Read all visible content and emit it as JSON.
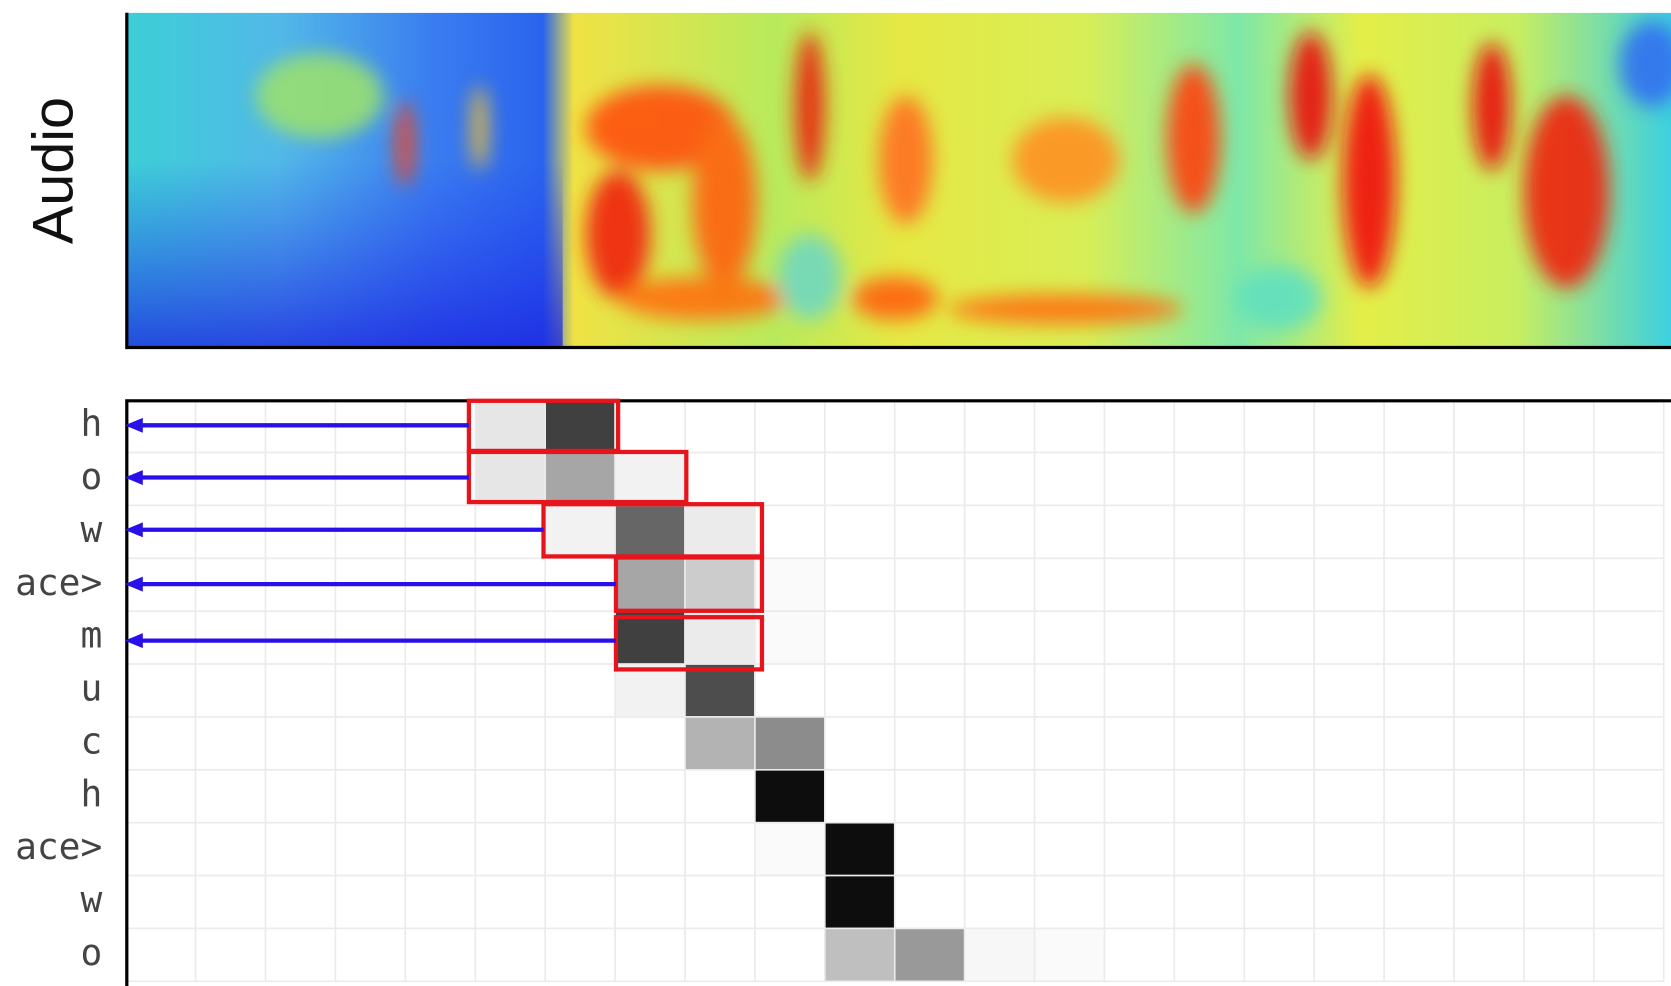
{
  "chart_data": {
    "type": "heatmap",
    "ylabel": "Audio",
    "rows": [
      "h",
      "o",
      "w",
      "ace>",
      "m",
      "u",
      "c",
      "h",
      "ace>",
      "w",
      "o"
    ],
    "color": "#000000",
    "clim": [
      0,
      1
    ],
    "values": [
      [
        0,
        0,
        0,
        0,
        0,
        0.1,
        0.75,
        0,
        0,
        0,
        0,
        0,
        0,
        0,
        0,
        0,
        0,
        0,
        0,
        0,
        0,
        0
      ],
      [
        0,
        0,
        0,
        0,
        0,
        0.1,
        0.35,
        0.05,
        0,
        0,
        0,
        0,
        0,
        0,
        0,
        0,
        0,
        0,
        0,
        0,
        0,
        0
      ],
      [
        0,
        0,
        0,
        0,
        0,
        0,
        0.05,
        0.6,
        0.08,
        0,
        0,
        0,
        0,
        0,
        0,
        0,
        0,
        0,
        0,
        0,
        0,
        0
      ],
      [
        0,
        0,
        0,
        0,
        0,
        0,
        0,
        0.35,
        0.2,
        0.02,
        0,
        0,
        0,
        0,
        0,
        0,
        0,
        0,
        0,
        0,
        0,
        0
      ],
      [
        0,
        0,
        0,
        0,
        0,
        0,
        0,
        0.75,
        0.08,
        0.02,
        0,
        0,
        0,
        0,
        0,
        0,
        0,
        0,
        0,
        0,
        0,
        0
      ],
      [
        0,
        0,
        0,
        0,
        0,
        0,
        0,
        0.05,
        0.7,
        0,
        0,
        0,
        0,
        0,
        0,
        0,
        0,
        0,
        0,
        0,
        0,
        0
      ],
      [
        0,
        0,
        0,
        0,
        0,
        0,
        0,
        0,
        0.3,
        0.45,
        0,
        0,
        0,
        0,
        0,
        0,
        0,
        0,
        0,
        0,
        0,
        0
      ],
      [
        0,
        0,
        0,
        0,
        0,
        0,
        0,
        0,
        0,
        0.95,
        0,
        0,
        0,
        0,
        0,
        0,
        0,
        0,
        0,
        0,
        0,
        0
      ],
      [
        0,
        0,
        0,
        0,
        0,
        0,
        0,
        0,
        0,
        0.02,
        0.95,
        0,
        0,
        0,
        0,
        0,
        0,
        0,
        0,
        0,
        0,
        0
      ],
      [
        0,
        0,
        0,
        0,
        0,
        0,
        0,
        0,
        0,
        0,
        0.95,
        0,
        0,
        0,
        0,
        0,
        0,
        0,
        0,
        0,
        0,
        0
      ],
      [
        0,
        0,
        0,
        0,
        0,
        0,
        0,
        0,
        0,
        0,
        0.25,
        0.4,
        0.03,
        0.02,
        0,
        0,
        0,
        0,
        0,
        0,
        0,
        0
      ]
    ]
  }
}
